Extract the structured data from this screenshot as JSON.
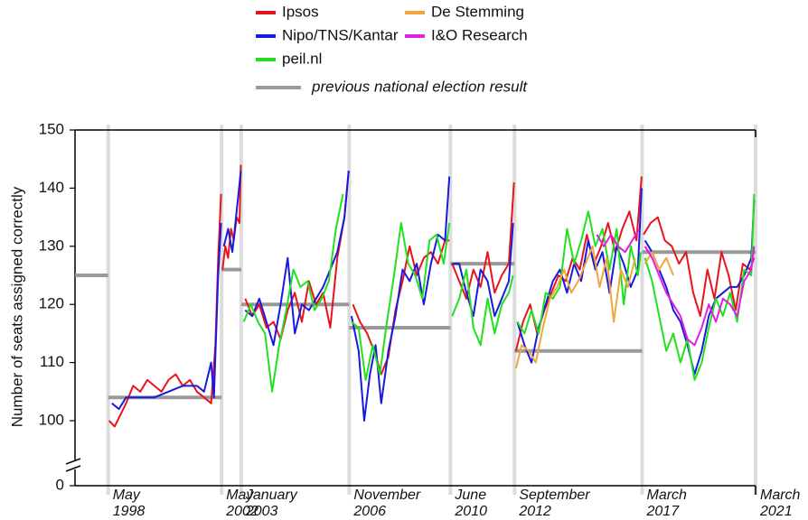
{
  "chart_data": {
    "type": "line",
    "y_label": "Number of seats assigned correctly",
    "ylim": [
      0,
      150
    ],
    "yticks": [
      0,
      100,
      110,
      120,
      130,
      140,
      150
    ],
    "xlim": [
      1997.2,
      2021.2
    ],
    "xticks": [
      {
        "value": 1998.37,
        "label": "May\n1998"
      },
      {
        "value": 2002.37,
        "label": "May\n2002"
      },
      {
        "value": 2003.06,
        "label": "January\n2003"
      },
      {
        "value": 2006.87,
        "label": "November\n2006"
      },
      {
        "value": 2010.44,
        "label": "June\n2010"
      },
      {
        "value": 2012.7,
        "label": "September\n2012"
      },
      {
        "value": 2017.2,
        "label": "March\n2017"
      },
      {
        "value": 2021.2,
        "label": "March\n2021"
      }
    ],
    "series": [
      {
        "name": "Ipsos",
        "color": "#e8141c",
        "x": [
          1998.4,
          1998.6,
          1998.8,
          1999.0,
          1999.25,
          1999.5,
          1999.75,
          2000.0,
          2000.25,
          2000.5,
          2000.75,
          2001.0,
          2001.25,
          2001.5,
          2001.75,
          2002.0,
          2002.15,
          2002.25,
          2002.35,
          2002.37,
          2002.4,
          2002.5,
          2002.6,
          2002.7,
          2002.8,
          2002.9,
          2003.0,
          2003.05,
          2003.06,
          2003.2,
          2003.45,
          2003.7,
          2003.95,
          2004.2,
          2004.45,
          2004.7,
          2004.95,
          2005.2,
          2005.45,
          2005.7,
          2005.95,
          2006.2,
          2006.45,
          2006.7,
          2006.85,
          2006.87,
          2007.0,
          2007.25,
          2007.5,
          2007.75,
          2008.0,
          2008.25,
          2008.5,
          2008.75,
          2009.0,
          2009.25,
          2009.5,
          2009.75,
          2010.0,
          2010.25,
          2010.4,
          2010.44,
          2010.5,
          2010.75,
          2011.0,
          2011.25,
          2011.5,
          2011.75,
          2012.0,
          2012.25,
          2012.5,
          2012.68,
          2012.7,
          2012.75,
          2013.0,
          2013.25,
          2013.5,
          2013.75,
          2014.0,
          2014.25,
          2014.5,
          2014.75,
          2015.0,
          2015.25,
          2015.5,
          2015.75,
          2016.0,
          2016.25,
          2016.5,
          2016.75,
          2017.0,
          2017.18,
          2017.2,
          2017.25,
          2017.5,
          2017.75,
          2018.0,
          2018.25,
          2018.5,
          2018.75,
          2019.0,
          2019.25,
          2019.5,
          2019.75,
          2020.0,
          2020.25,
          2020.5,
          2020.75,
          2021.0,
          2021.15
        ],
        "values": [
          100,
          99,
          101,
          103,
          106,
          105,
          107,
          106,
          105,
          107,
          108,
          106,
          107,
          105,
          104,
          103,
          113,
          128,
          139,
          null,
          126,
          130,
          128,
          133,
          131,
          135,
          134,
          144,
          null,
          121,
          118,
          120,
          116,
          117,
          114,
          119,
          122,
          117,
          124,
          120,
          122,
          116,
          128,
          135,
          143,
          null,
          120,
          117,
          115,
          112,
          108,
          111,
          119,
          124,
          130,
          125,
          128,
          129,
          127,
          131,
          131,
          null,
          127,
          124,
          121,
          126,
          123,
          129,
          122,
          125,
          127,
          141,
          null,
          112,
          117,
          120,
          115,
          119,
          122,
          125,
          124,
          128,
          126,
          132,
          127,
          130,
          134,
          129,
          133,
          136,
          131,
          142,
          null,
          132,
          134,
          135,
          131,
          130,
          127,
          129,
          122,
          118,
          126,
          121,
          129,
          125,
          119,
          127,
          126,
          128
        ]
      },
      {
        "name": "Nipo/TNS/Kantar",
        "color": "#1a1adf",
        "x": [
          1998.5,
          1998.75,
          1999.0,
          1999.5,
          2000.0,
          2000.5,
          2001.0,
          2001.5,
          2001.75,
          2002.0,
          2002.1,
          2002.25,
          2002.35,
          2002.37,
          2002.45,
          2002.6,
          2002.75,
          2002.9,
          2003.05,
          2003.06,
          2003.2,
          2003.45,
          2003.7,
          2003.95,
          2004.2,
          2004.45,
          2004.7,
          2004.95,
          2005.2,
          2005.45,
          2005.7,
          2005.95,
          2006.2,
          2006.45,
          2006.7,
          2006.85,
          2006.87,
          2006.95,
          2007.2,
          2007.4,
          2007.6,
          2007.8,
          2008.0,
          2008.25,
          2008.5,
          2008.75,
          2009.0,
          2009.25,
          2009.5,
          2009.75,
          2010.0,
          2010.25,
          2010.4,
          2010.44,
          2010.5,
          2010.75,
          2011.0,
          2011.25,
          2011.5,
          2011.75,
          2012.0,
          2012.25,
          2012.5,
          2012.65,
          2012.7,
          2012.8,
          2013.05,
          2013.3,
          2013.55,
          2013.8,
          2014.05,
          2014.3,
          2014.55,
          2014.8,
          2015.05,
          2015.3,
          2015.55,
          2015.8,
          2016.05,
          2016.3,
          2016.55,
          2016.8,
          2017.05,
          2017.18,
          2017.2,
          2017.3,
          2017.55,
          2017.8,
          2018.05,
          2018.3,
          2018.55,
          2018.8,
          2019.05,
          2019.3,
          2019.55,
          2019.8,
          2020.05,
          2020.3,
          2020.55,
          2020.8,
          2021.05,
          2021.15
        ],
        "values": [
          103,
          102,
          104,
          104,
          104,
          105,
          106,
          106,
          105,
          110,
          104,
          125,
          134,
          null,
          130,
          133,
          129,
          136,
          143,
          null,
          119,
          118,
          121,
          117,
          113,
          120,
          128,
          115,
          120,
          119,
          121,
          123,
          126,
          129,
          135,
          143,
          null,
          118,
          112,
          100,
          108,
          113,
          103,
          112,
          118,
          126,
          124,
          127,
          120,
          127,
          132,
          131,
          142,
          null,
          127,
          127,
          122,
          118,
          126,
          124,
          118,
          121,
          124,
          134,
          null,
          117,
          113,
          110,
          116,
          120,
          124,
          126,
          122,
          127,
          124,
          131,
          126,
          129,
          122,
          130,
          127,
          123,
          126,
          140,
          null,
          131,
          129,
          126,
          123,
          119,
          117,
          113,
          108,
          112,
          118,
          121,
          122,
          123,
          123,
          125,
          128,
          138
        ]
      },
      {
        "name": "peil.nl",
        "color": "#22e020",
        "x": [
          2003.15,
          2003.4,
          2003.65,
          2003.9,
          2004.15,
          2004.4,
          2004.65,
          2004.9,
          2005.15,
          2005.4,
          2005.65,
          2005.9,
          2006.15,
          2006.4,
          2006.65,
          2006.87,
          2006.95,
          2007.2,
          2007.45,
          2007.7,
          2007.95,
          2008.2,
          2008.45,
          2008.7,
          2008.95,
          2009.2,
          2009.45,
          2009.7,
          2009.95,
          2010.2,
          2010.4,
          2010.44,
          2010.5,
          2010.75,
          2011.0,
          2011.25,
          2011.5,
          2011.75,
          2012.0,
          2012.25,
          2012.5,
          2012.65,
          2012.7,
          2012.8,
          2013.05,
          2013.3,
          2013.55,
          2013.8,
          2014.05,
          2014.3,
          2014.55,
          2014.8,
          2015.05,
          2015.3,
          2015.55,
          2015.8,
          2016.05,
          2016.3,
          2016.55,
          2016.8,
          2017.05,
          2017.15,
          2017.2,
          2017.3,
          2017.55,
          2017.8,
          2018.05,
          2018.3,
          2018.55,
          2018.8,
          2019.05,
          2019.3,
          2019.55,
          2019.8,
          2020.05,
          2020.3,
          2020.55,
          2020.8,
          2021.05,
          2021.15
        ],
        "values": [
          117,
          120,
          117,
          115,
          105,
          113,
          119,
          126,
          123,
          124,
          119,
          121,
          124,
          133,
          139,
          null,
          117,
          116,
          107,
          113,
          108,
          117,
          125,
          134,
          127,
          125,
          121,
          131,
          132,
          127,
          134,
          null,
          118,
          121,
          126,
          116,
          113,
          121,
          115,
          120,
          122,
          125,
          null,
          117,
          115,
          119,
          115,
          122,
          121,
          123,
          133,
          127,
          131,
          136,
          130,
          133,
          126,
          133,
          120,
          130,
          125,
          129,
          null,
          128,
          124,
          118,
          112,
          115,
          110,
          114,
          107,
          110,
          116,
          121,
          118,
          122,
          117,
          126,
          125,
          139
        ]
      },
      {
        "name": "De Stemming",
        "color": "#f0a640",
        "x": [
          2012.75,
          2012.95,
          2013.2,
          2013.45,
          2013.7,
          2013.95,
          2014.2,
          2014.45,
          2014.7,
          2014.95,
          2015.2,
          2015.45,
          2015.7,
          2015.95,
          2016.2,
          2016.45,
          2016.7,
          2016.95,
          2017.2,
          2017.3,
          2017.55,
          2017.8,
          2018.05,
          2018.3
        ],
        "values": [
          109,
          113,
          112,
          110,
          116,
          121,
          123,
          126,
          122,
          124,
          127,
          130,
          123,
          128,
          117,
          126,
          123,
          128,
          null,
          127,
          129,
          126,
          128,
          125
        ]
      },
      {
        "name": "I&O Research",
        "color": "#e020e0",
        "x": [
          2015.6,
          2015.85,
          2016.1,
          2016.35,
          2016.6,
          2016.85,
          2017.1,
          2017.2,
          2017.3,
          2017.55,
          2017.8,
          2018.05,
          2018.3,
          2018.55,
          2018.8,
          2019.05,
          2019.3,
          2019.55,
          2019.8,
          2020.05,
          2020.3,
          2020.55,
          2020.8,
          2021.05,
          2021.15
        ],
        "values": [
          132,
          130,
          132,
          130,
          129,
          131,
          133,
          null,
          130,
          128,
          125,
          122,
          120,
          118,
          114,
          113,
          116,
          120,
          117,
          121,
          120,
          118,
          124,
          126,
          130
        ]
      },
      {
        "name": "previous national election result",
        "color": "#999999",
        "x": [
          1997.2,
          1998.37,
          1998.37,
          1998.37,
          2002.37,
          2002.37,
          2002.37,
          2003.06,
          2003.06,
          2003.06,
          2006.87,
          2006.87,
          2006.87,
          2010.44,
          2010.44,
          2010.44,
          2012.7,
          2012.7,
          2012.7,
          2017.2,
          2017.2,
          2017.2,
          2021.2
        ],
        "values": [
          125,
          125,
          null,
          104,
          104,
          null,
          126,
          126,
          null,
          120,
          120,
          null,
          116,
          116,
          null,
          127,
          127,
          null,
          112,
          112,
          null,
          129,
          129
        ]
      }
    ]
  }
}
